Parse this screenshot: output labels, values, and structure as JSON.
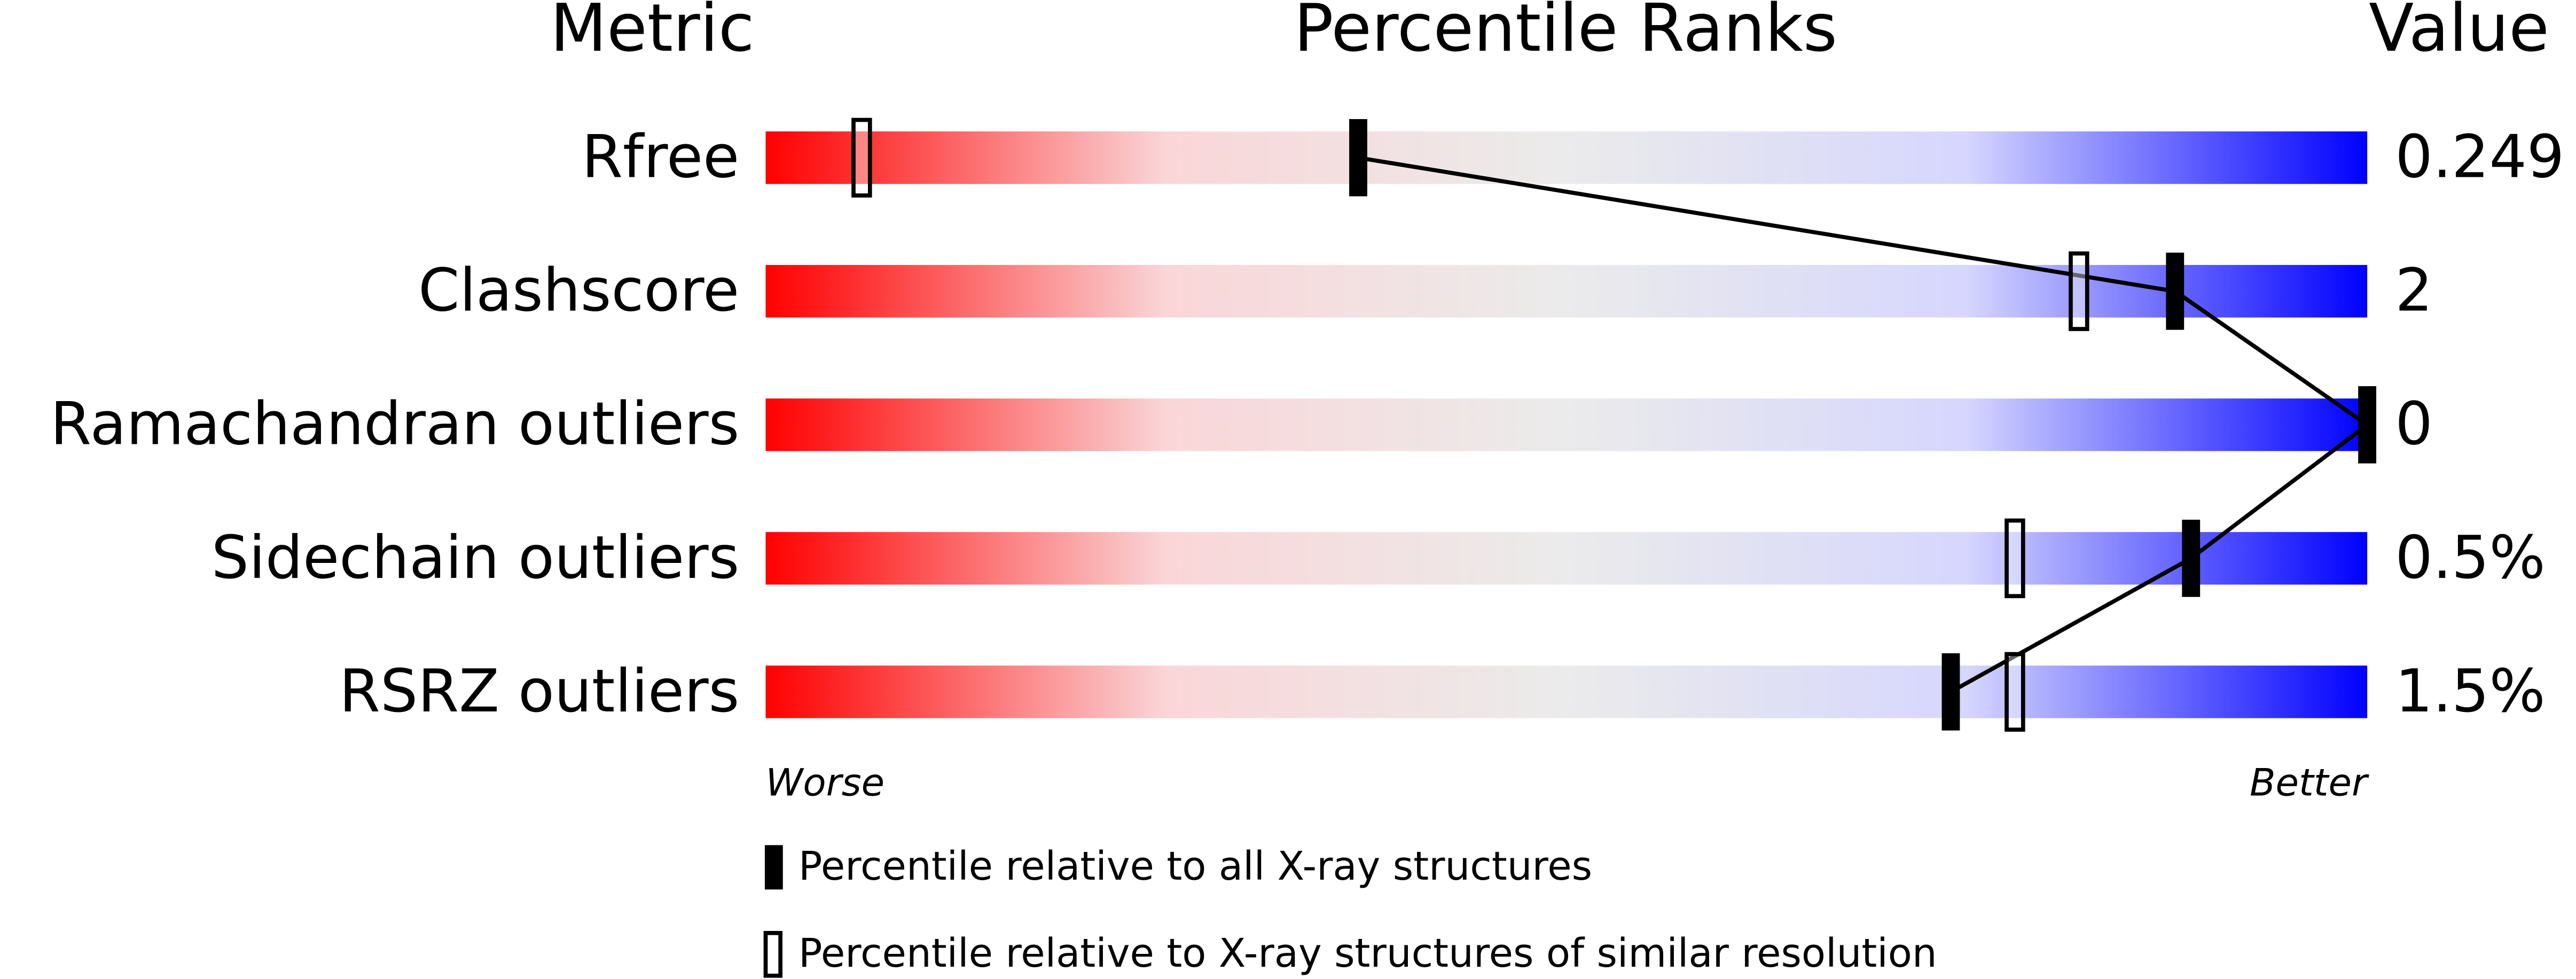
{
  "chart_data": {
    "type": "percentile",
    "metric_header": "Metric",
    "title": "Percentile Ranks",
    "value_header": "Value",
    "categories": [
      "Rfree",
      "Clashscore",
      "Ramachandran outliers",
      "Sidechain outliers",
      "RSRZ outliers"
    ],
    "metric_values": [
      "0.249",
      "2",
      "0",
      "0.5%",
      "1.5%"
    ],
    "series": [
      {
        "name": "Percentile relative to all X-ray structures",
        "color": "#000000",
        "style": "filled",
        "values": [
          37,
          88,
          100,
          89,
          74
        ]
      },
      {
        "name": "Percentile relative to X-ray structures of similar resolution",
        "color": "#000000",
        "style": "hollow",
        "values": [
          6,
          82,
          null,
          78,
          78
        ]
      }
    ],
    "xlim": [
      0,
      100
    ],
    "worse_label": "Worse",
    "better_label": "Better",
    "gradient_colors": [
      "#ff0000",
      "#fad6d8",
      "#ebebeb",
      "#d6d6fe",
      "#0000ff"
    ]
  }
}
